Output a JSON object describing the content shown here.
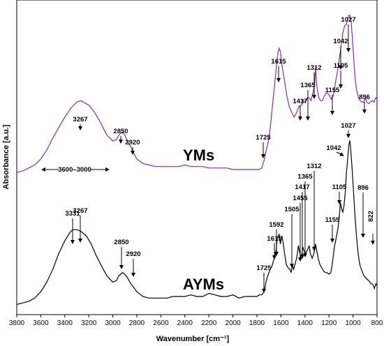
{
  "chart_data": {
    "type": "line",
    "xlabel": "Wavenumber [cm⁻¹]",
    "ylabel": "Absorbance [a.u.]",
    "xlim": [
      3800,
      800
    ],
    "x_reversed": true,
    "x_ticks": [
      3800,
      3600,
      3400,
      3200,
      3000,
      2800,
      2600,
      2400,
      2200,
      2000,
      1800,
      1600,
      1400,
      1200,
      1000,
      800
    ],
    "y_ticks_shown": false,
    "grid": false,
    "legend": "none",
    "series": [
      {
        "name": "YMs",
        "color": "#7b3394",
        "x": [
          3800,
          3750,
          3700,
          3650,
          3600,
          3550,
          3500,
          3450,
          3400,
          3350,
          3300,
          3267,
          3200,
          3150,
          3100,
          3050,
          3000,
          2970,
          2950,
          2920,
          2900,
          2880,
          2850,
          2820,
          2800,
          2750,
          2700,
          2650,
          2600,
          2550,
          2500,
          2450,
          2400,
          2350,
          2300,
          2250,
          2200,
          2150,
          2100,
          2050,
          2000,
          1950,
          1900,
          1850,
          1800,
          1780,
          1760,
          1740,
          1725,
          1710,
          1700,
          1690,
          1680,
          1660,
          1640,
          1625,
          1615,
          1605,
          1590,
          1570,
          1550,
          1530,
          1510,
          1490,
          1470,
          1450,
          1435,
          1425,
          1417,
          1410,
          1395,
          1380,
          1365,
          1350,
          1335,
          1320,
          1312,
          1300,
          1285,
          1270,
          1255,
          1240,
          1225,
          1210,
          1195,
          1180,
          1165,
          1155,
          1145,
          1130,
          1120,
          1105,
          1095,
          1085,
          1070,
          1055,
          1042,
          1035,
          1027,
          1015,
          1005,
          995,
          985,
          970,
          955,
          940,
          925,
          910,
          896,
          885,
          870,
          855,
          840,
          825,
          810,
          800
        ],
        "y": [
          0.05,
          0.06,
          0.08,
          0.1,
          0.14,
          0.2,
          0.28,
          0.35,
          0.42,
          0.48,
          0.52,
          0.53,
          0.5,
          0.45,
          0.38,
          0.3,
          0.26,
          0.27,
          0.3,
          0.32,
          0.3,
          0.26,
          0.22,
          0.17,
          0.14,
          0.11,
          0.1,
          0.09,
          0.09,
          0.09,
          0.09,
          0.09,
          0.1,
          0.09,
          0.09,
          0.09,
          0.08,
          0.08,
          0.08,
          0.08,
          0.07,
          0.07,
          0.07,
          0.07,
          0.07,
          0.07,
          0.08,
          0.13,
          0.19,
          0.24,
          0.28,
          0.34,
          0.42,
          0.58,
          0.74,
          0.85,
          0.88,
          0.86,
          0.76,
          0.66,
          0.56,
          0.49,
          0.45,
          0.42,
          0.45,
          0.49,
          0.5,
          0.5,
          0.54,
          0.52,
          0.53,
          0.55,
          0.55,
          0.53,
          0.58,
          0.63,
          0.75,
          0.62,
          0.55,
          0.53,
          0.53,
          0.56,
          0.58,
          0.58,
          0.56,
          0.54,
          0.56,
          0.6,
          0.66,
          0.72,
          0.78,
          0.86,
          0.92,
          0.98,
          1.03,
          1.04,
          1.08,
          1.1,
          1.1,
          1.05,
          0.95,
          0.82,
          0.7,
          0.6,
          0.55,
          0.53,
          0.52,
          0.52,
          0.55,
          0.52,
          0.51,
          0.52,
          0.53,
          0.52,
          0.55,
          0.54
        ]
      },
      {
        "name": "AYMs",
        "color": "#000000",
        "x": [
          3800,
          3750,
          3700,
          3650,
          3600,
          3550,
          3500,
          3450,
          3400,
          3350,
          3331,
          3300,
          3267,
          3220,
          3180,
          3140,
          3100,
          3050,
          3000,
          2970,
          2950,
          2920,
          2900,
          2880,
          2850,
          2820,
          2800,
          2750,
          2700,
          2650,
          2600,
          2550,
          2500,
          2450,
          2400,
          2350,
          2300,
          2250,
          2200,
          2150,
          2100,
          2050,
          2000,
          1950,
          1900,
          1850,
          1800,
          1780,
          1760,
          1740,
          1725,
          1710,
          1700,
          1690,
          1675,
          1660,
          1650,
          1640,
          1630,
          1615,
          1605,
          1592,
          1580,
          1570,
          1555,
          1540,
          1525,
          1515,
          1505,
          1495,
          1480,
          1470,
          1460,
          1455,
          1445,
          1435,
          1425,
          1417,
          1405,
          1395,
          1380,
          1370,
          1365,
          1355,
          1340,
          1330,
          1320,
          1312,
          1300,
          1290,
          1275,
          1260,
          1245,
          1230,
          1215,
          1200,
          1185,
          1175,
          1165,
          1155,
          1145,
          1135,
          1125,
          1115,
          1105,
          1095,
          1085,
          1075,
          1065,
          1055,
          1042,
          1035,
          1027,
          1020,
          1010,
          1000,
          990,
          980,
          970,
          960,
          950,
          940,
          930,
          920,
          910,
          896,
          885,
          870,
          860,
          850,
          840,
          830,
          822,
          810,
          800
        ],
        "y": [
          0.02,
          0.03,
          0.04,
          0.06,
          0.1,
          0.16,
          0.24,
          0.34,
          0.42,
          0.48,
          0.49,
          0.49,
          0.48,
          0.45,
          0.4,
          0.33,
          0.27,
          0.2,
          0.16,
          0.17,
          0.2,
          0.22,
          0.21,
          0.19,
          0.15,
          0.12,
          0.1,
          0.07,
          0.06,
          0.06,
          0.06,
          0.06,
          0.07,
          0.07,
          0.07,
          0.08,
          0.07,
          0.07,
          0.09,
          0.08,
          0.07,
          0.07,
          0.08,
          0.06,
          0.07,
          0.07,
          0.07,
          0.08,
          0.08,
          0.1,
          0.16,
          0.2,
          0.22,
          0.24,
          0.26,
          0.3,
          0.33,
          0.36,
          0.44,
          0.46,
          0.4,
          0.45,
          0.4,
          0.34,
          0.27,
          0.25,
          0.24,
          0.22,
          0.27,
          0.24,
          0.28,
          0.31,
          0.36,
          0.39,
          0.35,
          0.32,
          0.34,
          0.38,
          0.35,
          0.34,
          0.36,
          0.38,
          0.39,
          0.34,
          0.31,
          0.33,
          0.36,
          0.4,
          0.35,
          0.31,
          0.27,
          0.25,
          0.23,
          0.22,
          0.22,
          0.21,
          0.22,
          0.26,
          0.32,
          0.38,
          0.42,
          0.46,
          0.5,
          0.56,
          0.66,
          0.62,
          0.6,
          0.64,
          0.72,
          0.84,
          0.96,
          1.02,
          1.05,
          1.0,
          0.9,
          0.78,
          0.66,
          0.54,
          0.44,
          0.36,
          0.3,
          0.26,
          0.24,
          0.22,
          0.2,
          0.19,
          0.18,
          0.17,
          0.16,
          0.15,
          0.15,
          0.14,
          0.12,
          0.15,
          0.14
        ]
      }
    ],
    "annotations": {
      "YMs": [
        "3267",
        "2850",
        "2920",
        "1725",
        "1615",
        "1417",
        "1365",
        "1312",
        "1155",
        "1105",
        "1042",
        "1027",
        "896",
        "3600–3000"
      ],
      "AYMs": [
        "3331",
        "3267",
        "2850",
        "2920",
        "1725",
        "1615",
        "1592",
        "1505",
        "1455",
        "1417",
        "1365",
        "1312",
        "1155",
        "1105",
        "1042",
        "1027",
        "896",
        "822"
      ]
    }
  }
}
